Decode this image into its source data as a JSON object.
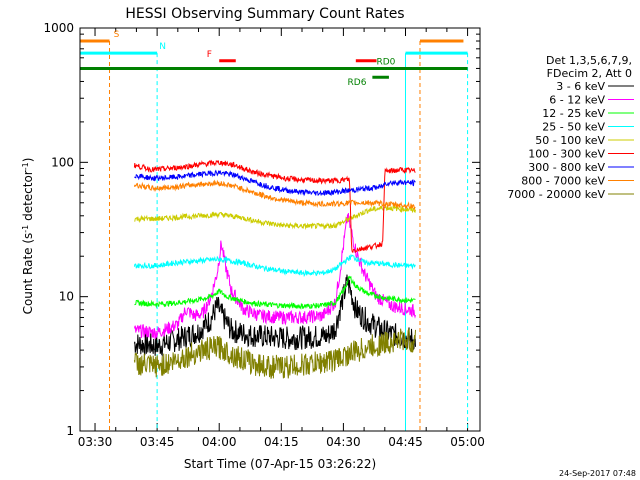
{
  "chart_data": {
    "type": "line",
    "title": "HESSI Observing Summary Count Rates",
    "xlabel": "Start Time (07-Apr-15 03:26:22)",
    "ylabel": "Count Rate (s^-1 detector^-1)",
    "ylabel_main": "Count Rate (s",
    "ylabel_sup1": "-1",
    "ylabel_mid": " detector",
    "ylabel_sup2": "-1",
    "ylabel_end": ")",
    "y_scale": "log",
    "ylim": [
      1,
      1000
    ],
    "xlim": [
      "03:26:22",
      "05:03:00"
    ],
    "x_tick_labels": [
      "03:30",
      "03:45",
      "04:00",
      "04:15",
      "04:30",
      "04:45",
      "05:00"
    ],
    "x_ticks_min": [
      30,
      45,
      60,
      75,
      90,
      105,
      120
    ],
    "y_tick_labels": [
      "1",
      "10",
      "100",
      "1000"
    ],
    "y_ticks": [
      1,
      10,
      100,
      1000
    ],
    "legend_header": [
      "Det 1,3,5,6,7,9,",
      "FDecim 2, Att 0"
    ],
    "legend_placement": "right",
    "footer_date": "24-Sep-2017 07:48",
    "data_window_min": [
      39.5,
      107.5
    ],
    "series": [
      {
        "name": "3 - 6 keV",
        "color": "#000000",
        "points": [
          [
            39.5,
            4.5
          ],
          [
            45,
            4.3
          ],
          [
            50,
            4.8
          ],
          [
            55,
            5.5
          ],
          [
            58,
            6.8
          ],
          [
            59.5,
            8.5
          ],
          [
            61,
            7
          ],
          [
            63,
            5.6
          ],
          [
            67,
            5.2
          ],
          [
            72,
            5.0
          ],
          [
            77,
            4.9
          ],
          [
            82,
            5.0
          ],
          [
            86,
            5.1
          ],
          [
            88,
            5.8
          ],
          [
            89.5,
            8.8
          ],
          [
            91,
            13
          ],
          [
            91.8,
            11
          ],
          [
            93,
            8
          ],
          [
            96,
            6.5
          ],
          [
            100,
            5.5
          ],
          [
            104,
            5.0
          ],
          [
            107.5,
            4.8
          ]
        ]
      },
      {
        "name": "6 - 12 keV",
        "color": "#ff00ff",
        "points": [
          [
            39.5,
            5.6
          ],
          [
            45,
            5.4
          ],
          [
            50,
            6.2
          ],
          [
            52,
            8
          ],
          [
            54,
            7.2
          ],
          [
            56,
            7.5
          ],
          [
            58,
            10
          ],
          [
            59.5,
            15
          ],
          [
            60.5,
            25
          ],
          [
            61.5,
            17
          ],
          [
            63,
            11
          ],
          [
            66,
            8
          ],
          [
            70,
            7.2
          ],
          [
            75,
            7
          ],
          [
            80,
            7
          ],
          [
            85,
            7.2
          ],
          [
            88,
            9
          ],
          [
            89,
            14
          ],
          [
            90,
            24
          ],
          [
            91,
            40
          ],
          [
            92,
            30
          ],
          [
            93,
            22
          ],
          [
            95,
            15
          ],
          [
            98,
            10
          ],
          [
            102,
            8.5
          ],
          [
            107.5,
            7.8
          ]
        ]
      },
      {
        "name": "12 - 25 keV",
        "color": "#00ff00",
        "points": [
          [
            39.5,
            9.0
          ],
          [
            45,
            8.8
          ],
          [
            50,
            9.0
          ],
          [
            55,
            9.5
          ],
          [
            58,
            10
          ],
          [
            60,
            11
          ],
          [
            62,
            10
          ],
          [
            66,
            9.2
          ],
          [
            70,
            8.8
          ],
          [
            75,
            8.6
          ],
          [
            80,
            8.5
          ],
          [
            85,
            8.6
          ],
          [
            88,
            9
          ],
          [
            90,
            11
          ],
          [
            91.5,
            14
          ],
          [
            93,
            12
          ],
          [
            96,
            10.5
          ],
          [
            100,
            9.8
          ],
          [
            104,
            9.5
          ],
          [
            107.5,
            9.3
          ]
        ]
      },
      {
        "name": "25 - 50 keV",
        "color": "#00ffff",
        "points": [
          [
            39.5,
            17
          ],
          [
            45,
            17
          ],
          [
            50,
            18
          ],
          [
            55,
            18.5
          ],
          [
            60,
            19
          ],
          [
            65,
            18
          ],
          [
            70,
            16.5
          ],
          [
            75,
            15.5
          ],
          [
            80,
            15
          ],
          [
            85,
            15
          ],
          [
            88,
            16
          ],
          [
            90,
            18
          ],
          [
            92,
            20
          ],
          [
            95,
            18
          ],
          [
            100,
            17.5
          ],
          [
            104,
            17
          ],
          [
            107.5,
            17
          ]
        ]
      },
      {
        "name": "50 - 100 keV",
        "color": "#cccc00",
        "points": [
          [
            39.5,
            38
          ],
          [
            45,
            38
          ],
          [
            50,
            39
          ],
          [
            55,
            40
          ],
          [
            60,
            41
          ],
          [
            65,
            39
          ],
          [
            70,
            36
          ],
          [
            75,
            34
          ],
          [
            80,
            33.5
          ],
          [
            85,
            33.5
          ],
          [
            88,
            34
          ],
          [
            90,
            36
          ],
          [
            93,
            40
          ],
          [
            96,
            44
          ],
          [
            100,
            46
          ],
          [
            104,
            45
          ],
          [
            107.5,
            44
          ]
        ]
      },
      {
        "name": "100 - 300 keV",
        "color": "#ff0000",
        "points": [
          [
            39.5,
            95
          ],
          [
            44,
            88
          ],
          [
            48,
            90
          ],
          [
            52,
            93
          ],
          [
            56,
            97
          ],
          [
            60,
            100
          ],
          [
            64,
            95
          ],
          [
            68,
            85
          ],
          [
            72,
            80
          ],
          [
            76,
            76
          ],
          [
            80,
            74
          ],
          [
            84,
            73
          ],
          [
            88,
            73
          ],
          [
            90,
            74
          ],
          [
            91.5,
            75
          ],
          [
            92,
            22
          ],
          [
            95,
            23
          ],
          [
            98,
            24
          ],
          [
            99.5,
            25
          ],
          [
            100,
            85
          ],
          [
            104,
            88
          ],
          [
            107.5,
            86
          ]
        ]
      },
      {
        "name": "300 - 800 keV",
        "color": "#0000ff",
        "points": [
          [
            39.5,
            80
          ],
          [
            44,
            76
          ],
          [
            48,
            77
          ],
          [
            52,
            79
          ],
          [
            56,
            82
          ],
          [
            60,
            84
          ],
          [
            64,
            80
          ],
          [
            68,
            72
          ],
          [
            72,
            66
          ],
          [
            76,
            62
          ],
          [
            80,
            60
          ],
          [
            84,
            59
          ],
          [
            88,
            60
          ],
          [
            92,
            62
          ],
          [
            96,
            64
          ],
          [
            99.5,
            66
          ],
          [
            100,
            70
          ],
          [
            104,
            71
          ],
          [
            107.5,
            70
          ]
        ]
      },
      {
        "name": "800 - 7000 keV",
        "color": "#ff8000",
        "points": [
          [
            39.5,
            68
          ],
          [
            44,
            64
          ],
          [
            48,
            65
          ],
          [
            52,
            67
          ],
          [
            56,
            69
          ],
          [
            60,
            70
          ],
          [
            64,
            66
          ],
          [
            68,
            60
          ],
          [
            72,
            55
          ],
          [
            76,
            52
          ],
          [
            80,
            50
          ],
          [
            84,
            49
          ],
          [
            88,
            49
          ],
          [
            92,
            50
          ],
          [
            96,
            50
          ],
          [
            100,
            49
          ],
          [
            104,
            48
          ],
          [
            107.5,
            47
          ]
        ]
      },
      {
        "name": "7000 - 20000 keV",
        "color": "#808000",
        "points": [
          [
            39.5,
            3.2
          ],
          [
            44,
            3.0
          ],
          [
            48,
            3.2
          ],
          [
            52,
            3.6
          ],
          [
            56,
            4.0
          ],
          [
            60,
            4.2
          ],
          [
            64,
            3.6
          ],
          [
            68,
            3.2
          ],
          [
            72,
            3.0
          ],
          [
            76,
            3.0
          ],
          [
            80,
            3.1
          ],
          [
            84,
            3.2
          ],
          [
            88,
            3.4
          ],
          [
            92,
            3.8
          ],
          [
            96,
            4.2
          ],
          [
            100,
            4.5
          ],
          [
            104,
            4.8
          ],
          [
            107.5,
            4.6
          ]
        ]
      }
    ],
    "markers": [
      {
        "label": "S",
        "color": "#ff8000",
        "segments": [
          [
            0,
            33.5
          ],
          [
            108.5,
            119
          ]
        ],
        "y": 800,
        "vlines": [
          33.5,
          108.5
        ]
      },
      {
        "label": "N",
        "color": "#00ffff",
        "segments": [
          [
            0,
            45
          ],
          [
            105,
            120
          ]
        ],
        "y": 650,
        "vlines": [
          45,
          105,
          120
        ]
      },
      {
        "label": "F",
        "color": "#ff0000",
        "segments": [
          [
            60,
            64
          ],
          [
            93,
            98
          ]
        ],
        "y": 570
      },
      {
        "label": "RD0",
        "color": "#008000",
        "segments": [
          [
            0,
            120
          ]
        ],
        "y": 500
      },
      {
        "label": "RD6",
        "color": "#008000",
        "segments": [
          [
            97,
            101
          ]
        ],
        "y": 430
      }
    ]
  }
}
